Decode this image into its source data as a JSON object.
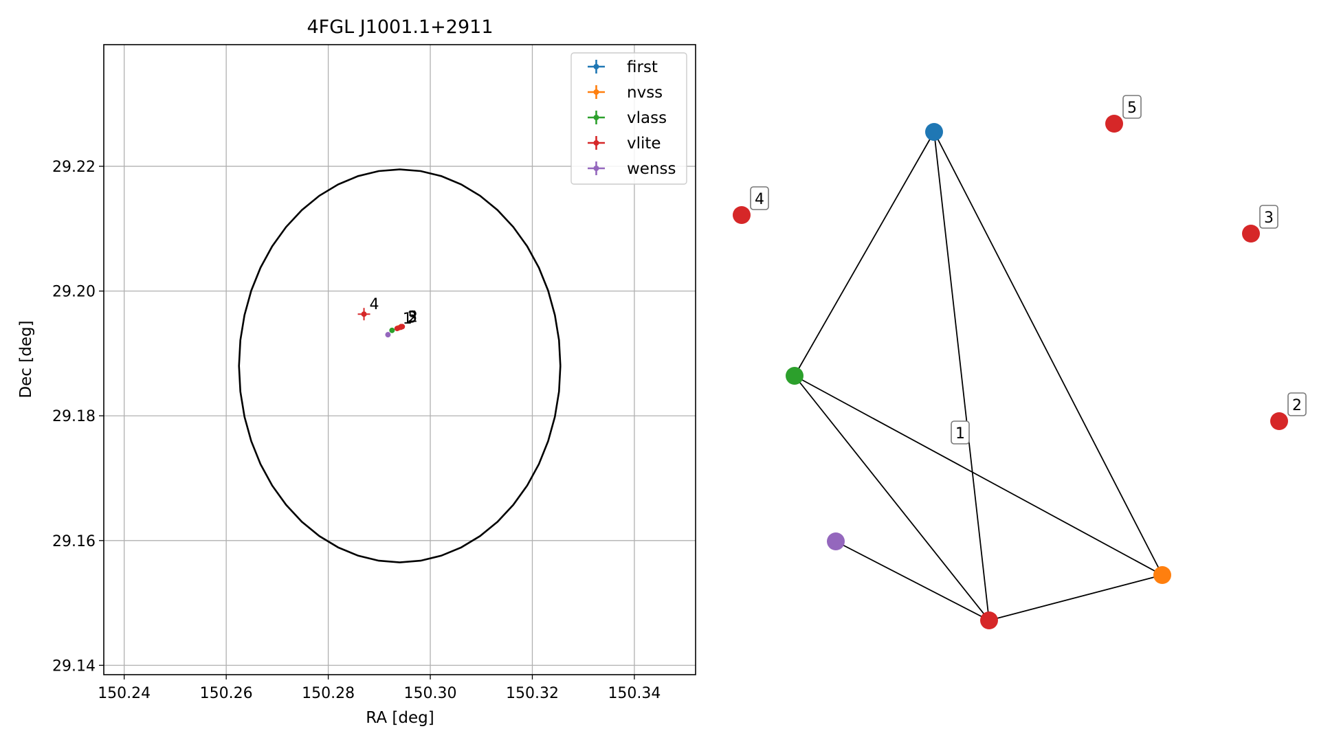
{
  "chart_data": [
    {
      "type": "scatter",
      "title": "4FGL J1001.1+2911",
      "xlabel": "RA [deg]",
      "ylabel": "Dec [deg]",
      "xlim": [
        150.236,
        150.352
      ],
      "ylim": [
        29.1385,
        29.2395
      ],
      "xticks": [
        150.24,
        150.26,
        150.28,
        150.3,
        150.32,
        150.34
      ],
      "yticks": [
        29.14,
        29.16,
        29.18,
        29.2,
        29.22
      ],
      "xtick_labels": [
        "150.24",
        "150.26",
        "150.28",
        "150.30",
        "150.32",
        "150.34"
      ],
      "ytick_labels": [
        "29.14",
        "29.16",
        "29.18",
        "29.20",
        "29.22"
      ],
      "grid": true,
      "legend_position": "top-right",
      "circle": {
        "center": [
          150.294,
          29.188
        ],
        "radius": 0.0315
      },
      "series": [
        {
          "name": "first",
          "color": "#1f77b4",
          "points": [
            {
              "x": 150.2942,
              "y": 29.1942
            }
          ]
        },
        {
          "name": "nvss",
          "color": "#ff7f0e",
          "points": [
            {
              "x": 150.2938,
              "y": 29.1941
            }
          ]
        },
        {
          "name": "vlass",
          "color": "#2ca02c",
          "points": [
            {
              "x": 150.2925,
              "y": 29.1937
            }
          ]
        },
        {
          "name": "vlite",
          "color": "#d62728",
          "points": [
            {
              "x": 150.2935,
              "y": 29.194,
              "label": "1"
            },
            {
              "x": 150.2945,
              "y": 29.1943,
              "label": "2"
            },
            {
              "x": 150.2942,
              "y": 29.1942,
              "label": "3"
            },
            {
              "x": 150.287,
              "y": 29.1963,
              "label": "4"
            },
            {
              "x": 150.2943,
              "y": 29.1943,
              "label": "5"
            }
          ]
        },
        {
          "name": "wenss",
          "color": "#9467bd",
          "points": [
            {
              "x": 150.2917,
              "y": 29.193
            }
          ]
        }
      ],
      "point_labels": [
        {
          "text": "4",
          "x": 150.287,
          "y": 29.1963
        },
        {
          "text": "1",
          "x": 150.2935,
          "y": 29.194
        },
        {
          "text": "5",
          "x": 150.2945,
          "y": 29.1943
        },
        {
          "text": "3",
          "x": 150.2944,
          "y": 29.1942
        },
        {
          "text": "2",
          "x": 150.2946,
          "y": 29.1943
        }
      ]
    },
    {
      "type": "graph",
      "nodes": [
        {
          "id": "first",
          "color": "#1f77b4"
        },
        {
          "id": "vlass",
          "color": "#2ca02c"
        },
        {
          "id": "wenss",
          "color": "#9467bd"
        },
        {
          "id": "nvss",
          "color": "#ff7f0e"
        },
        {
          "id": "vlite-1",
          "color": "#d62728",
          "label": "1"
        },
        {
          "id": "vlite-2",
          "color": "#d62728",
          "label": "2"
        },
        {
          "id": "vlite-3",
          "color": "#d62728",
          "label": "3"
        },
        {
          "id": "vlite-4",
          "color": "#d62728",
          "label": "4"
        },
        {
          "id": "vlite-5",
          "color": "#d62728",
          "label": "5"
        }
      ],
      "edges": [
        [
          "first",
          "vlass"
        ],
        [
          "first",
          "vlite-1"
        ],
        [
          "first",
          "nvss"
        ],
        [
          "vlass",
          "vlite-1"
        ],
        [
          "vlass",
          "nvss"
        ],
        [
          "wenss",
          "vlite-1"
        ],
        [
          "vlite-1",
          "nvss"
        ]
      ]
    }
  ]
}
